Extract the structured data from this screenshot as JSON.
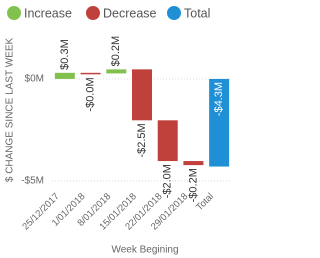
{
  "chart_data": {
    "type": "waterfall",
    "legend": [
      {
        "name": "Increase",
        "color": "#83c14f"
      },
      {
        "name": "Decrease",
        "color": "#c0413b"
      },
      {
        "name": "Total",
        "color": "#1f8fd6"
      }
    ],
    "x_label": "Week Begining",
    "y_label": "$ CHANGE SINCE LAST WEEK",
    "categories": [
      "25/12/2017",
      "1/01/2018",
      "8/01/2018",
      "15/01/2018",
      "22/01/2018",
      "29/01/2018",
      "Total"
    ],
    "values": [
      0.3,
      -0.03,
      0.2,
      -2.5,
      -2.0,
      -0.2,
      -4.3
    ],
    "value_labels": [
      "$0.3M",
      "-$0.0M",
      "$0.2M",
      "-$2.5M",
      "-$2.0M",
      "-$0.2M",
      "-$4.3M"
    ],
    "is_total": [
      false,
      false,
      false,
      false,
      false,
      false,
      true
    ],
    "ylim": [
      -5.5,
      2.5
    ],
    "yticks": [
      {
        "value": 0,
        "label": "$0M"
      },
      {
        "value": -5,
        "label": "-$5M"
      }
    ],
    "grid": true
  }
}
